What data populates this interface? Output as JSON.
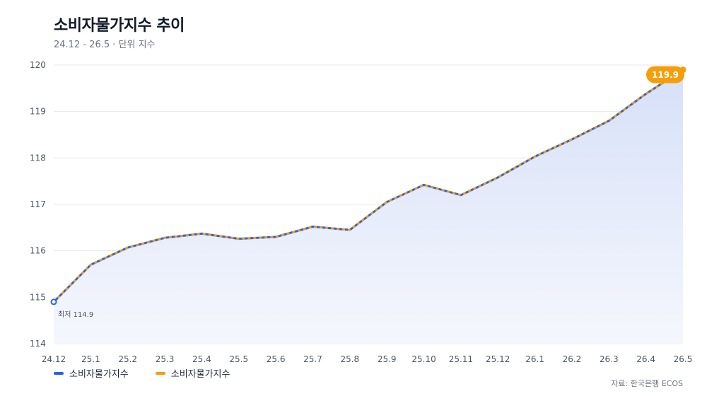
{
  "header": {
    "title": "소비자물가지수 추이",
    "subtitle": "24.12 - 26.5 · 단위 지수"
  },
  "source": "자료: 한국은행 ECOS",
  "colors": {
    "series_a": "#2563eb",
    "series_b": "#f59e0b",
    "area_top": "#d6e0f8",
    "area_bottom": "#f5f7fd",
    "grid": "#e5e7eb"
  },
  "chart_data": {
    "type": "line",
    "title": "소비자물가지수 추이",
    "subtitle": "24.12 - 26.5 · 단위 지수",
    "categories": [
      "24.12",
      "25.1",
      "25.2",
      "25.3",
      "25.4",
      "25.5",
      "25.6",
      "25.7",
      "25.8",
      "25.9",
      "25.10",
      "25.11",
      "25.12",
      "26.1",
      "26.2",
      "26.3",
      "26.4",
      "26.5"
    ],
    "series": [
      {
        "name": "소비자물가지수",
        "color": "#2563eb",
        "values": [
          114.9,
          115.7,
          116.07,
          116.28,
          116.37,
          116.26,
          116.3,
          116.52,
          116.45,
          117.05,
          117.42,
          117.2,
          117.58,
          118.03,
          118.4,
          118.8,
          119.38,
          119.9
        ]
      },
      {
        "name": "소비자물가지수",
        "color": "#f59e0b",
        "values": [
          114.9,
          115.7,
          116.07,
          116.28,
          116.37,
          116.26,
          116.3,
          116.52,
          116.45,
          117.05,
          117.42,
          117.2,
          117.58,
          118.03,
          118.4,
          118.8,
          119.38,
          119.9
        ]
      }
    ],
    "yticks": [
      114,
      115,
      116,
      117,
      118,
      119,
      120
    ],
    "ylim": [
      114,
      120
    ],
    "grid": true,
    "legend": "bottom-left",
    "annotations": {
      "min_label": "최저 114.9",
      "max_label": "119.9"
    }
  }
}
